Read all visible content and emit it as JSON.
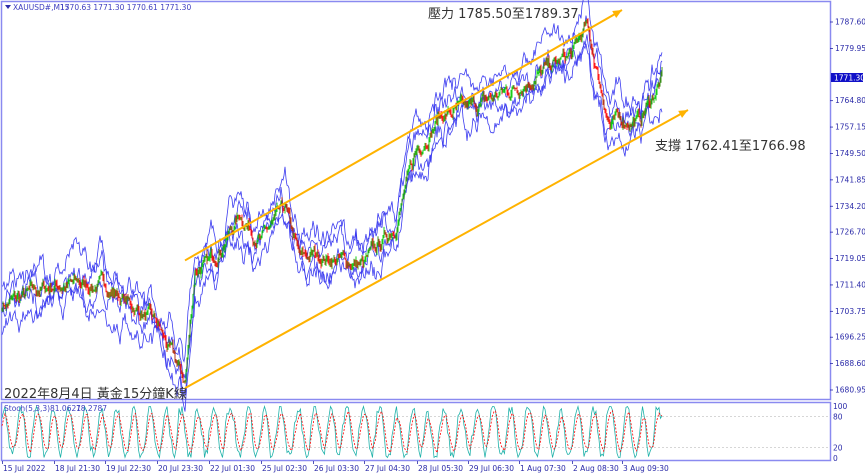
{
  "header": {
    "symbol": "XAUUSD#,M15",
    "ohlc": "1770.63 1771.30 1770.61 1771.30"
  },
  "annotations": {
    "resistance": "壓力 1785.50至1789.37",
    "support": "支撐 1762.41至1766.98",
    "caption": "2022年8月4日 黃金15分鐘K線"
  },
  "chart_data": [
    {
      "type": "candlestick",
      "symbol": "XAUUSD#",
      "timeframe": "M15",
      "overlay": "envelope/bands (blue)",
      "y_ticks": [
        "1787.60",
        "1779.95",
        "1764.80",
        "1757.15",
        "1749.50",
        "1741.85",
        "1734.20",
        "1726.70",
        "1719.05",
        "1711.40",
        "1703.75",
        "1696.25",
        "1688.60",
        "1680.95"
      ],
      "ylim": [
        1679,
        1795
      ],
      "current_price": "1771.30",
      "x_ticks": [
        "15 Jul 2022",
        "18 Jul 21:30",
        "19 Jul 22:30",
        "20 Jul 23:30",
        "22 Jul 01:30",
        "25 Jul 02:30",
        "26 Jul 03:30",
        "27 Jul 04:30",
        "28 Jul 05:30",
        "29 Jul 06:30",
        "1 Aug 07:30",
        "2 Aug 08:30",
        "3 Aug 09:30"
      ],
      "approx_close_at_ticks": [
        1705.6,
        1711.4,
        1711.4,
        1699.8,
        1717.2,
        1724.4,
        1720.1,
        1717.2,
        1750.5,
        1762.1,
        1769.2,
        1778.0,
        1759.1
      ],
      "last_close": 1771.3,
      "period_low": {
        "price": 1683.2,
        "between": [
          "20 Jul 23:30",
          "22 Jul 01:30"
        ]
      },
      "period_high": {
        "price": 1789.4,
        "between": [
          "2 Aug 08:30",
          "3 Aug 09:30"
        ]
      },
      "trend_channel": {
        "upper": {
          "from_price": 1718.5,
          "to_price": 1789.4
        },
        "lower": {
          "from_price": 1681.5,
          "to_price": 1761.0
        }
      },
      "colors": {
        "up": "#00c800",
        "down": "#ff0000",
        "bands": "#3c3cf0",
        "channel": "#ffb300",
        "frame": "#8a8af0"
      }
    },
    {
      "type": "line",
      "title": "Stoch(5,3,3)",
      "main": "81.0621",
      "signal": "78.2787",
      "y_ticks": [
        "100",
        "80",
        "20",
        "0"
      ],
      "ylim": [
        0,
        100
      ],
      "levels": [
        20,
        80
      ],
      "colors": {
        "main": "#20b2aa",
        "signal": "#ff0000"
      }
    }
  ]
}
